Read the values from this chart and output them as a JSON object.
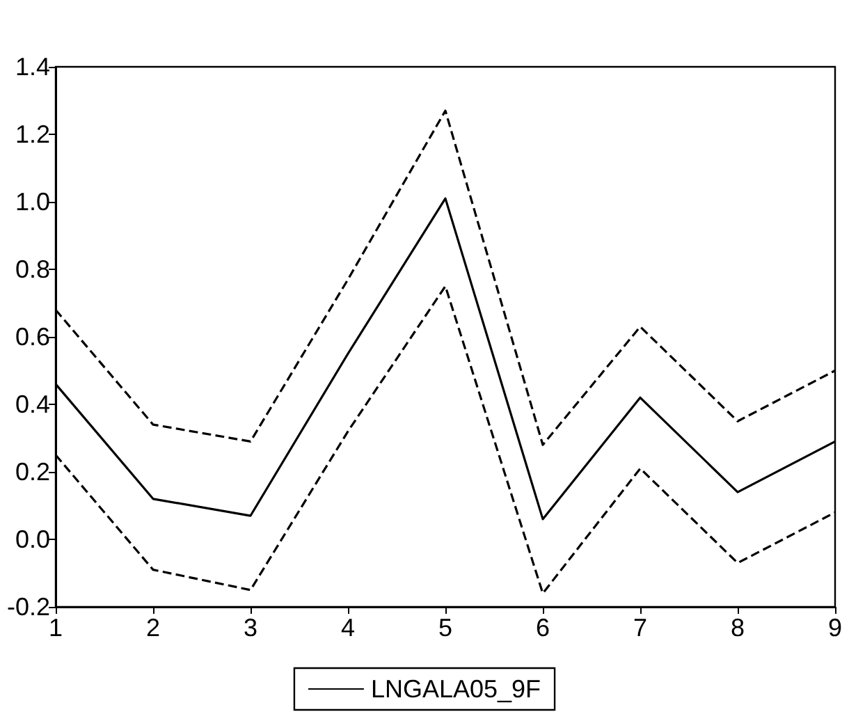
{
  "chart_data": {
    "type": "line",
    "x": [
      1,
      2,
      3,
      4,
      5,
      6,
      7,
      8,
      9
    ],
    "series": [
      {
        "name": "LNGALA05_9F",
        "color": "#000000",
        "line_style": "solid",
        "values": [
          0.46,
          0.12,
          0.07,
          0.55,
          1.01,
          0.06,
          0.42,
          0.14,
          0.29
        ]
      },
      {
        "color": "#000000",
        "line_style": "dashed",
        "values": [
          0.68,
          0.34,
          0.29,
          0.77,
          1.27,
          0.28,
          0.63,
          0.35,
          0.5
        ]
      },
      {
        "color": "#000000",
        "line_style": "dashed",
        "values": [
          0.25,
          -0.09,
          -0.15,
          0.32,
          0.75,
          -0.16,
          0.21,
          -0.07,
          0.08
        ]
      }
    ],
    "xlim": [
      1,
      9
    ],
    "xticks": [
      1,
      2,
      3,
      4,
      5,
      6,
      7,
      8,
      9
    ],
    "ylim": [
      -0.2,
      1.4
    ],
    "yticks": [
      -0.2,
      {
        "value": 0,
        "label": "0.0"
      },
      0.2,
      0.4,
      0.6,
      0.8,
      {
        "value": 1,
        "label": "1.0"
      },
      1.2,
      1.4
    ],
    "legend": "bottom",
    "marker": "none"
  }
}
